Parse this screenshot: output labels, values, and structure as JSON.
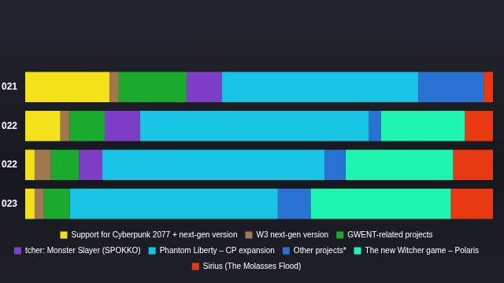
{
  "chart_data": {
    "type": "bar",
    "orientation": "horizontal",
    "stacked": true,
    "grid": false,
    "legend": "bottom",
    "tick_labels": "y",
    "xlim": [
      0,
      100
    ],
    "categories": [
      "021",
      "022",
      "022",
      "023"
    ],
    "series": [
      {
        "name": "Support for Cyberpunk 2077 + next-gen version",
        "color": "#f5e11a",
        "values": [
          18,
          7.5,
          2,
          2
        ]
      },
      {
        "name": "W3 next-gen version",
        "color": "#a07850",
        "values": [
          2,
          2,
          3.5,
          2
        ]
      },
      {
        "name": "GWENT-related projects",
        "color": "#1aaa2e",
        "values": [
          14.5,
          7.5,
          6,
          5.5
        ]
      },
      {
        "name": "tcher: Monster Slayer (SPOKKO)",
        "color": "#7d3fc8",
        "values": [
          7.5,
          7.5,
          5,
          0
        ]
      },
      {
        "name": "Phantom Liberty – CP expansion",
        "color": "#19c3e6",
        "values": [
          42,
          49,
          47.5,
          44.5
        ]
      },
      {
        "name": "Other projects*",
        "color": "#2a72d2",
        "values": [
          14,
          2.5,
          4.5,
          7
        ]
      },
      {
        "name": "The new Witcher game – Polaris",
        "color": "#1ef5b0",
        "values": [
          0,
          18,
          23,
          30
        ]
      },
      {
        "name": "Sirius (The Molasses Flood)",
        "color": "#e8380f",
        "values": [
          2,
          6,
          8.5,
          9
        ]
      }
    ]
  }
}
